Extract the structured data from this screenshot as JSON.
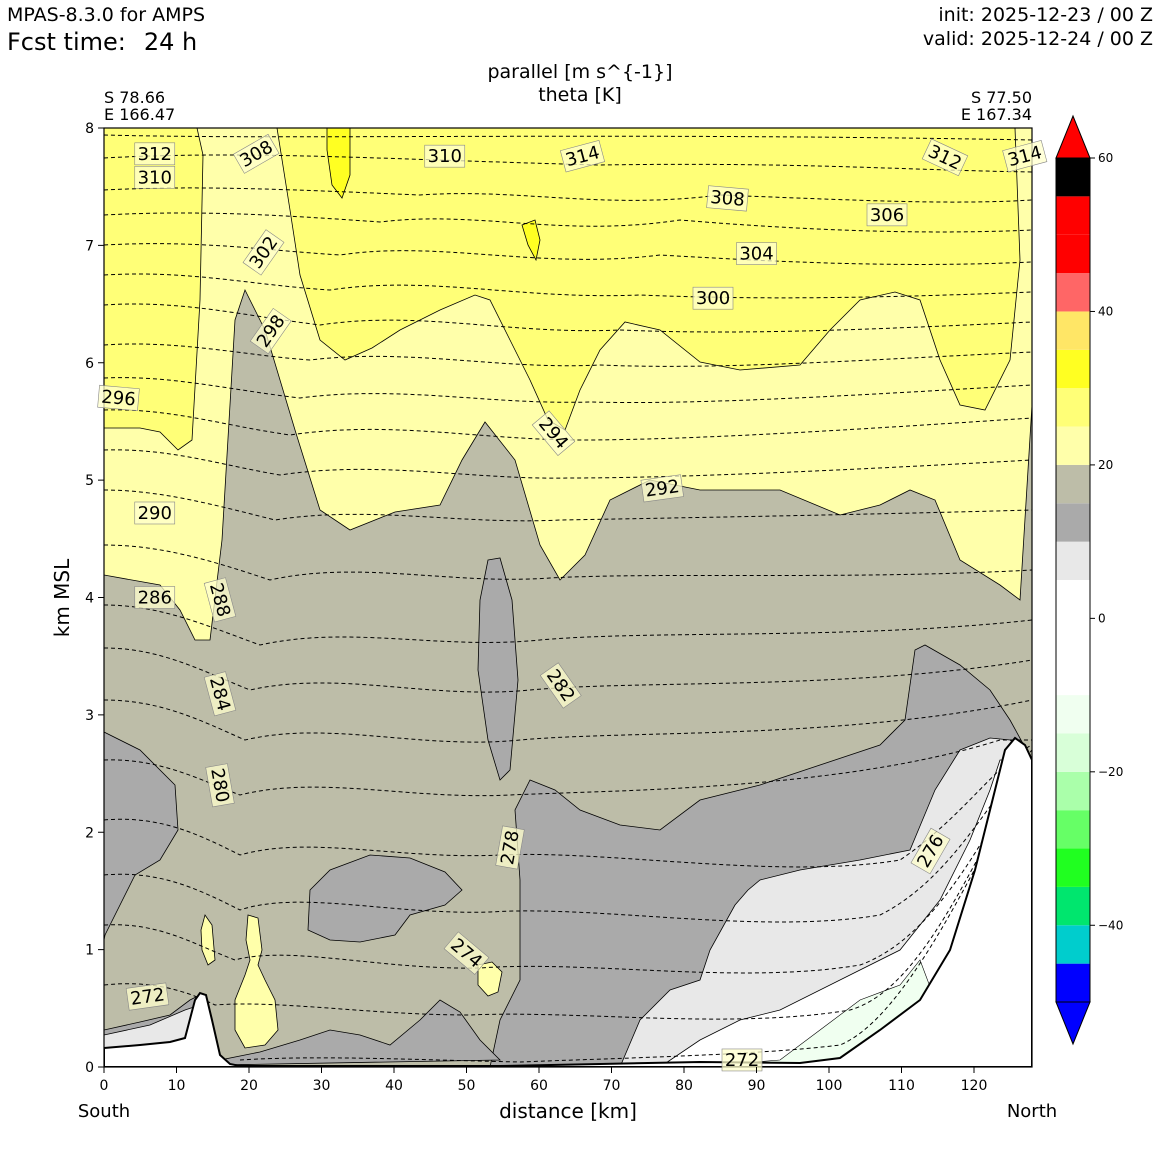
{
  "header": {
    "model": "MPAS-8.3.0 for AMPS",
    "fcst_label": "Fcst time:",
    "fcst_value": "24 h",
    "init": "init: 2025-12-23 / 00 Z",
    "valid": "valid: 2025-12-24 / 00 Z"
  },
  "chart_data": {
    "type": "cross-section contour",
    "title_line1": "parallel [m s^{-1}]",
    "title_line2": "theta [K]",
    "xlabel": "distance [km]",
    "ylabel": "km MSL",
    "xlim": [
      0,
      128
    ],
    "ylim": [
      0,
      8
    ],
    "xticks": [
      0,
      10,
      20,
      30,
      40,
      50,
      60,
      70,
      80,
      90,
      100,
      110,
      120
    ],
    "yticks": [
      0,
      1,
      2,
      3,
      4,
      5,
      6,
      7,
      8
    ],
    "left_end": {
      "lat": "S 78.66",
      "lon": "E 166.47",
      "direction": "South"
    },
    "right_end": {
      "lat": "S 77.50",
      "lon": "E 167.34",
      "direction": "North"
    },
    "colorbar": {
      "ticks": [
        60,
        40,
        20,
        0,
        -20,
        -40
      ],
      "tick_labels": [
        "60",
        "40",
        "20",
        "0",
        "−20",
        "−40"
      ],
      "levels": [
        -50,
        -45,
        -40,
        -35,
        -30,
        -25,
        -20,
        -15,
        -10,
        -5,
        0,
        5,
        10,
        15,
        20,
        25,
        30,
        35,
        40,
        45,
        50,
        55,
        60
      ],
      "colors": [
        "#0000ff",
        "#0000ff",
        "#00cdcd",
        "#00e66e",
        "#20ff20",
        "#66ff66",
        "#aaffaa",
        "#d8ffd8",
        "#f0fff0",
        "#ffffff",
        "#ffffff",
        "#ffffff",
        "#e8e8e8",
        "#aaaaaa",
        "#bdbda8",
        "#ffffaa",
        "#ffff77",
        "#ffff22",
        "#ffe666",
        "#ff6666",
        "#ff0000"
      ],
      "extend": "both"
    },
    "theta_labels": [
      {
        "value": 312,
        "x": 7,
        "y": 7.78
      },
      {
        "value": 310,
        "x": 7,
        "y": 7.58
      },
      {
        "value": 308,
        "x": 21,
        "y": 7.78
      },
      {
        "value": 310,
        "x": 47,
        "y": 7.76
      },
      {
        "value": 314,
        "x": 66,
        "y": 7.76
      },
      {
        "value": 312,
        "x": 116,
        "y": 7.75
      },
      {
        "value": 314,
        "x": 127,
        "y": 7.76
      },
      {
        "value": 308,
        "x": 86,
        "y": 7.4
      },
      {
        "value": 306,
        "x": 108,
        "y": 7.26
      },
      {
        "value": 302,
        "x": 22,
        "y": 6.94
      },
      {
        "value": 304,
        "x": 90,
        "y": 6.93
      },
      {
        "value": 300,
        "x": 84,
        "y": 6.55
      },
      {
        "value": 298,
        "x": 23,
        "y": 6.27
      },
      {
        "value": 296,
        "x": 2,
        "y": 5.7
      },
      {
        "value": 294,
        "x": 62,
        "y": 5.4
      },
      {
        "value": 292,
        "x": 77,
        "y": 4.93
      },
      {
        "value": 290,
        "x": 7,
        "y": 4.72
      },
      {
        "value": 286,
        "x": 7,
        "y": 4.0
      },
      {
        "value": 288,
        "x": 16,
        "y": 3.98
      },
      {
        "value": 284,
        "x": 16,
        "y": 3.18
      },
      {
        "value": 282,
        "x": 63,
        "y": 3.25
      },
      {
        "value": 280,
        "x": 16,
        "y": 2.4
      },
      {
        "value": 278,
        "x": 56,
        "y": 1.87
      },
      {
        "value": 276,
        "x": 114,
        "y": 1.84
      },
      {
        "value": 274,
        "x": 50,
        "y": 0.97
      },
      {
        "value": 272,
        "x": 6,
        "y": 0.6
      },
      {
        "value": 272,
        "x": 88,
        "y": 0.06
      }
    ]
  }
}
